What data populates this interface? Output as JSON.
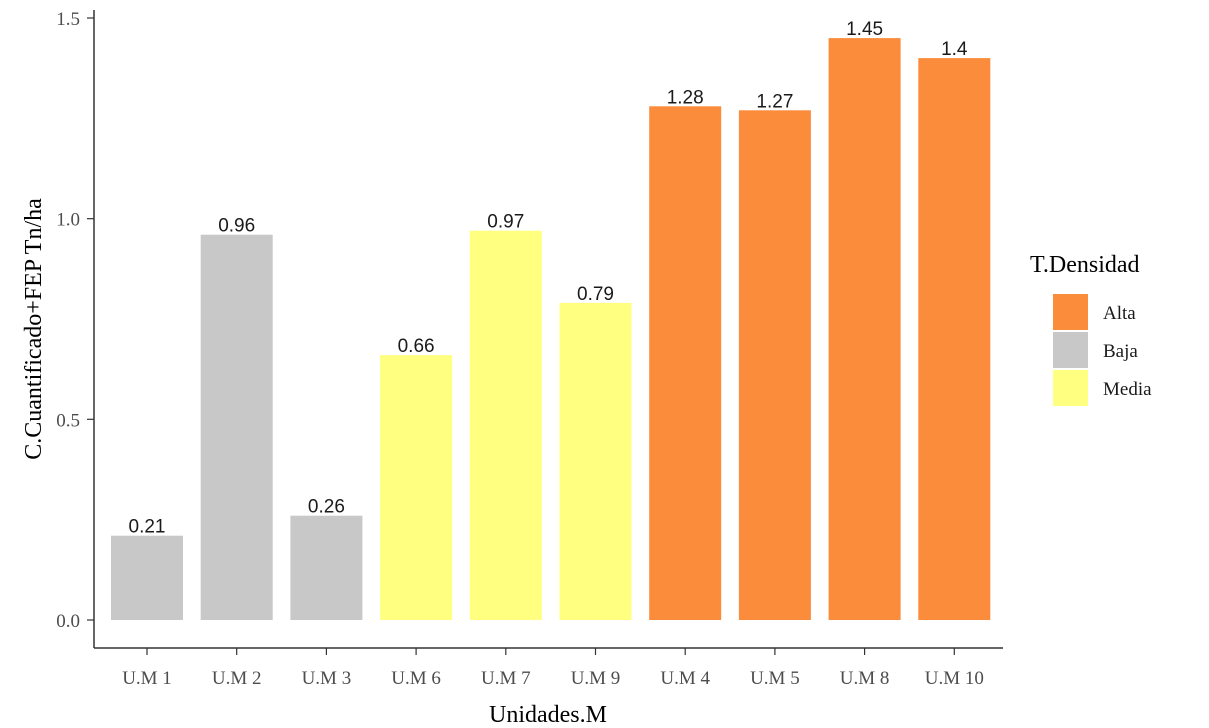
{
  "chart_data": {
    "type": "bar",
    "title": "",
    "xlabel": "Unidades.M",
    "ylabel": "C.Cuantificado+FEP Tn/ha",
    "ylim": [
      0,
      1.5
    ],
    "yticks": [
      "0.0",
      "0.5",
      "1.0",
      "1.5"
    ],
    "grid": false,
    "legend": {
      "title": "T.Densidad",
      "position": "right",
      "entries": [
        {
          "name": "Alta",
          "color": "#FA8C3C"
        },
        {
          "name": "Baja",
          "color": "#C8C8C8"
        },
        {
          "name": "Media",
          "color": "#FFFF80"
        }
      ]
    },
    "categories": [
      "U.M 1",
      "U.M 2",
      "U.M 3",
      "U.M 6",
      "U.M 7",
      "U.M 9",
      "U.M 4",
      "U.M 5",
      "U.M 8",
      "U.M 10"
    ],
    "values": [
      0.21,
      0.96,
      0.26,
      0.66,
      0.97,
      0.79,
      1.28,
      1.27,
      1.45,
      1.4
    ],
    "value_labels": [
      "0.21",
      "0.96",
      "0.26",
      "0.66",
      "0.97",
      "0.79",
      "1.28",
      "1.27",
      "1.45",
      "1.4"
    ],
    "groups": [
      "Baja",
      "Baja",
      "Baja",
      "Media",
      "Media",
      "Media",
      "Alta",
      "Alta",
      "Alta",
      "Alta"
    ]
  }
}
